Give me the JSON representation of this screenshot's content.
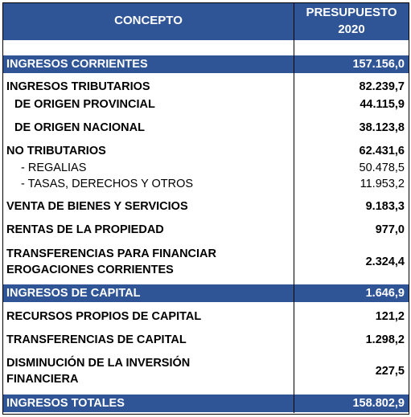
{
  "header": {
    "concepto": "CONCEPTO",
    "presupuesto": [
      "PRESUPUESTO",
      "2020"
    ]
  },
  "rows": [
    {
      "label": [
        "INGRESOS CORRIENTES"
      ],
      "value": "157.156,0"
    },
    {
      "label": [
        "INGRESOS TRIBUTARIOS"
      ],
      "value": "82.239,7"
    },
    {
      "label": [
        "DE ORIGEN PROVINCIAL"
      ],
      "value": "44.115,9"
    },
    {
      "label": [
        "DE ORIGEN NACIONAL"
      ],
      "value": "38.123,8"
    },
    {
      "label": [
        "NO TRIBUTARIOS"
      ],
      "value": "62.431,6"
    },
    {
      "label": [
        "- REGALIAS"
      ],
      "value": "50.478,5"
    },
    {
      "label": [
        "- TASAS, DERECHOS Y OTROS"
      ],
      "value": "11.953,2"
    },
    {
      "label": [
        "VENTA DE BIENES Y SERVICIOS"
      ],
      "value": "9.183,3"
    },
    {
      "label": [
        "RENTAS DE LA PROPIEDAD"
      ],
      "value": "977,0"
    },
    {
      "label": [
        "TRANSFERENCIAS PARA FINANCIAR",
        "EROGACIONES CORRIENTES"
      ],
      "value": "2.324,4"
    },
    {
      "label": [
        "INGRESOS DE CAPITAL"
      ],
      "value": "1.646,9"
    },
    {
      "label": [
        "RECURSOS PROPIOS DE CAPITAL"
      ],
      "value": "121,2"
    },
    {
      "label": [
        "TRANSFERENCIAS DE CAPITAL"
      ],
      "value": "1.298,2"
    },
    {
      "label": [
        "DISMINUCIÓN DE LA INVERSIÓN",
        "FINANCIERA"
      ],
      "value": "227,5"
    },
    {
      "label": [
        "INGRESOS TOTALES"
      ],
      "value": "158.802,9"
    }
  ]
}
